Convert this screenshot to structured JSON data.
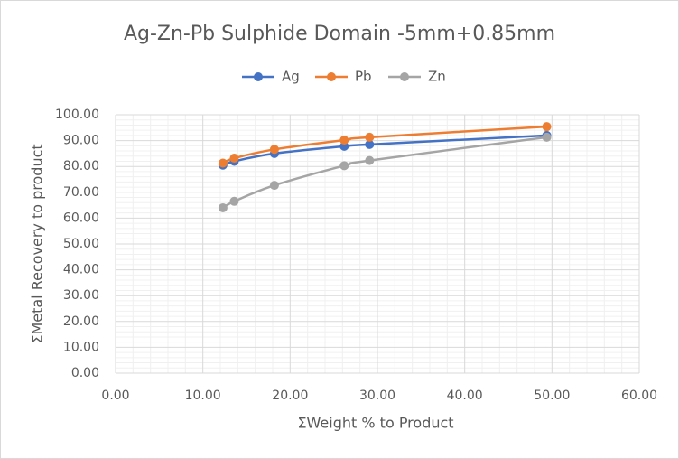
{
  "chart_data": {
    "type": "scatter",
    "title": "Ag-Zn-Pb Sulphide  Domain -5mm+0.85mm",
    "x_label": "ΣWeight % to Product",
    "y_label": "ΣMetal Recovery to product",
    "smooth": true,
    "grid": true,
    "minor_grid": true,
    "legend": "top",
    "xlim": [
      0,
      60
    ],
    "ylim": [
      0,
      100
    ],
    "xticks": [
      {
        "value": 0,
        "label": "0.00"
      },
      {
        "value": 10,
        "label": "10.00"
      },
      {
        "value": 20,
        "label": "20.00"
      },
      {
        "value": 30,
        "label": "30.00"
      },
      {
        "value": 40,
        "label": "40.00"
      },
      {
        "value": 50,
        "label": "50.00"
      },
      {
        "value": 60,
        "label": "60.00"
      }
    ],
    "yticks": [
      {
        "value": 0,
        "label": "0.00"
      },
      {
        "value": 10,
        "label": "10.00"
      },
      {
        "value": 20,
        "label": "20.00"
      },
      {
        "value": 30,
        "label": "30.00"
      },
      {
        "value": 40,
        "label": "40.00"
      },
      {
        "value": 50,
        "label": "50.00"
      },
      {
        "value": 60,
        "label": "60.00"
      },
      {
        "value": 70,
        "label": "70.00"
      },
      {
        "value": 80,
        "label": "80.00"
      },
      {
        "value": 90,
        "label": "90.00"
      },
      {
        "value": 100,
        "label": "100.00"
      }
    ],
    "x": [
      12.3,
      13.6,
      18.2,
      26.2,
      29.1,
      49.4
    ],
    "series": [
      {
        "name": "Ag",
        "color": "#4472c4",
        "values": [
          80.5,
          82.0,
          85.0,
          87.8,
          88.5,
          92.0
        ]
      },
      {
        "name": "Pb",
        "color": "#ed7d31",
        "values": [
          81.3,
          83.2,
          86.6,
          90.2,
          91.3,
          95.4
        ]
      },
      {
        "name": "Zn",
        "color": "#a5a5a5",
        "values": [
          64.0,
          66.5,
          72.7,
          80.3,
          82.3,
          91.3
        ]
      }
    ]
  }
}
